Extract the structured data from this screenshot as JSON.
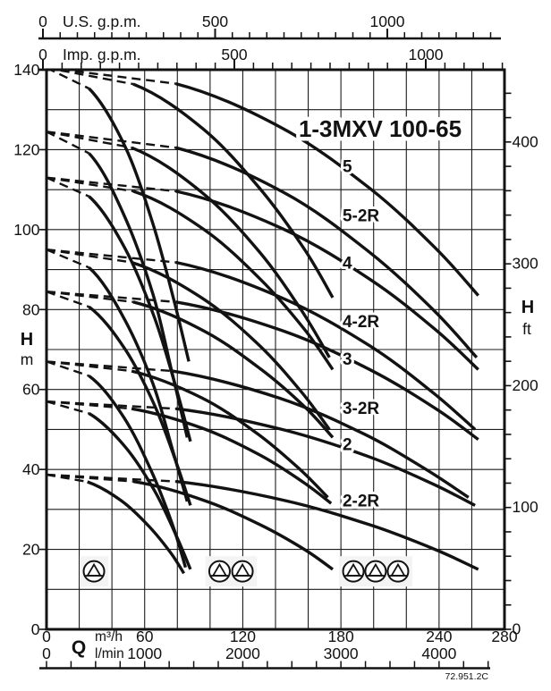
{
  "chart_data": {
    "type": "line",
    "title": "1-3MXV 100-65",
    "drawing_ref": "72.951.2C",
    "axes": {
      "flow": {
        "symbol": "Q",
        "unit_primary": "m³/h",
        "unit_secondary": "l/min",
        "ticks_m3h": [
          0,
          60,
          120,
          180,
          240,
          280
        ],
        "ticks_lmin": [
          0,
          1000,
          2000,
          3000,
          4000
        ],
        "range_m3h": [
          0,
          280
        ],
        "grid_step_m3h": 20,
        "lmin_minor_step": 250,
        "lmin_minor_max": 4500
      },
      "head_left": {
        "symbol": "H",
        "unit": "m",
        "ticks": [
          140,
          120,
          100,
          80,
          60,
          40,
          20,
          0
        ],
        "range": [
          0,
          140
        ],
        "grid_step": 10
      },
      "head_right": {
        "symbol": "H",
        "unit": "ft",
        "labels": [
          400,
          300,
          200,
          100,
          0
        ],
        "minor_step": 20,
        "minor_max": 440
      },
      "top_us": {
        "zero": "0",
        "label": "U.S. g.p.m.",
        "major_ticks": [
          0,
          500,
          1000
        ],
        "minor_step": 50,
        "minor_max": 1300
      },
      "top_imp": {
        "zero": "0",
        "label": "Imp. g.p.m.",
        "major_ticks": [
          0,
          500,
          1000
        ],
        "minor_step": 50,
        "minor_max": 1200
      }
    },
    "dashed_until_index": 1,
    "series": [
      {
        "label": "5",
        "shutoff_head_m": 140.5,
        "label_at": {
          "q": 181,
          "h": 115.9
        },
        "curves": [
          {
            "family": "1MXV",
            "points": [
              [
                0,
                140.5
              ],
              [
                26,
                135.3
              ],
              [
                48,
                120.8
              ],
              [
                65,
                101.5
              ],
              [
                78,
                82.2
              ],
              [
                87,
                67
              ]
            ]
          },
          {
            "family": "2MXV",
            "points": [
              [
                0,
                140.5
              ],
              [
                53,
                136.4
              ],
              [
                96,
                125.1
              ],
              [
                131,
                110.0
              ],
              [
                158,
                94.9
              ],
              [
                175,
                83
              ]
            ]
          },
          {
            "family": "3MXV",
            "points": [
              [
                0,
                140.5
              ],
              [
                79,
                136.5
              ],
              [
                145,
                125.2
              ],
              [
                198,
                110.2
              ],
              [
                238,
                95.3
              ],
              [
                264,
                83.5
              ]
            ]
          }
        ]
      },
      {
        "label": "5-2R",
        "shutoff_head_m": 124.5,
        "label_at": {
          "q": 181,
          "h": 103.6
        },
        "curves": [
          {
            "family": "1MXV",
            "points": [
              [
                0,
                124.5
              ],
              [
                26,
                119.1
              ],
              [
                47,
                104.0
              ],
              [
                65,
                83.9
              ],
              [
                77,
                63.8
              ],
              [
                86,
                48
              ]
            ]
          },
          {
            "family": "2MXV",
            "points": [
              [
                0,
                124.5
              ],
              [
                52,
                120.5
              ],
              [
                95,
                109.3
              ],
              [
                130,
                94.5
              ],
              [
                156,
                79.7
              ],
              [
                173,
                68
              ]
            ]
          },
          {
            "family": "3MXV",
            "points": [
              [
                0,
                124.5
              ],
              [
                79,
                120.5
              ],
              [
                145,
                109.3
              ],
              [
                197,
                94.5
              ],
              [
                237,
                79.7
              ],
              [
                263,
                68
              ]
            ]
          }
        ]
      },
      {
        "label": "4",
        "shutoff_head_m": 113,
        "label_at": {
          "q": 181,
          "h": 91.7
        },
        "curves": [
          {
            "family": "1MXV",
            "points": [
              [
                0,
                113
              ],
              [
                26,
                108.3
              ],
              [
                48,
                95.3
              ],
              [
                66,
                78.0
              ],
              [
                79,
                60.7
              ],
              [
                88,
                47
              ]
            ]
          },
          {
            "family": "2MXV",
            "points": [
              [
                0,
                113
              ],
              [
                53,
                109.6
              ],
              [
                96,
                100.1
              ],
              [
                131,
                87.5
              ],
              [
                158,
                74.9
              ],
              [
                175,
                65
              ]
            ]
          },
          {
            "family": "3MXV",
            "points": [
              [
                0,
                113
              ],
              [
                79,
                109.6
              ],
              [
                145,
                100.1
              ],
              [
                198,
                87.5
              ],
              [
                238,
                74.9
              ],
              [
                264,
                65
              ]
            ]
          }
        ]
      },
      {
        "label": "4-2R",
        "shutoff_head_m": 95,
        "label_at": {
          "q": 181,
          "h": 77
        },
        "curves": [
          {
            "family": "1MXV",
            "points": [
              [
                0,
                95
              ],
              [
                26,
                90.5
              ],
              [
                47,
                78.1
              ],
              [
                65,
                61.5
              ],
              [
                77,
                45.0
              ],
              [
                86,
                32
              ]
            ]
          },
          {
            "family": "2MXV",
            "points": [
              [
                0,
                95
              ],
              [
                52,
                91.8
              ],
              [
                95,
                82.9
              ],
              [
                130,
                71.1
              ],
              [
                156,
                59.3
              ],
              [
                173,
                50
              ]
            ]
          },
          {
            "family": "3MXV",
            "points": [
              [
                0,
                95
              ],
              [
                79,
                91.8
              ],
              [
                144,
                82.9
              ],
              [
                197,
                71.1
              ],
              [
                236,
                59.3
              ],
              [
                262,
                50
              ]
            ]
          }
        ]
      },
      {
        "label": "3",
        "shutoff_head_m": 84.5,
        "label_at": {
          "q": 181,
          "h": 67.6
        },
        "curves": [
          {
            "family": "1MXV",
            "points": [
              [
                0,
                84.5
              ],
              [
                26,
                80.7
              ],
              [
                48,
                70.1
              ],
              [
                66,
                56.1
              ],
              [
                79,
                42.1
              ],
              [
                88,
                31
              ]
            ]
          },
          {
            "family": "2MXV",
            "points": [
              [
                0,
                84.5
              ],
              [
                53,
                81.9
              ],
              [
                96,
                74.7
              ],
              [
                131,
                65.1
              ],
              [
                158,
                55.6
              ],
              [
                175,
                48
              ]
            ]
          },
          {
            "family": "3MXV",
            "points": [
              [
                0,
                84.5
              ],
              [
                79,
                81.9
              ],
              [
                145,
                74.6
              ],
              [
                198,
                64.9
              ],
              [
                238,
                55.2
              ],
              [
                264,
                47.5
              ]
            ]
          }
        ]
      },
      {
        "label": "3-2R",
        "shutoff_head_m": 67,
        "label_at": {
          "q": 181,
          "h": 55.3
        },
        "curves": [
          {
            "family": "1MXV",
            "points": [
              [
                0,
                67
              ],
              [
                26,
                63.4
              ],
              [
                47,
                53.2
              ],
              [
                64,
                39.7
              ],
              [
                77,
                26.2
              ],
              [
                85,
                15.5
              ]
            ]
          },
          {
            "family": "2MXV",
            "points": [
              [
                0,
                67
              ],
              [
                52,
                64.6
              ],
              [
                95,
                57.9
              ],
              [
                129,
                48.9
              ],
              [
                155,
                40.0
              ],
              [
                172,
                33
              ]
            ]
          },
          {
            "family": "3MXV",
            "points": [
              [
                0,
                67
              ],
              [
                77,
                64.6
              ],
              [
                142,
                57.9
              ],
              [
                194,
                48.9
              ],
              [
                232,
                40.0
              ],
              [
                258,
                33
              ]
            ]
          }
        ]
      },
      {
        "label": "2",
        "shutoff_head_m": 57,
        "label_at": {
          "q": 181,
          "h": 46.3
        },
        "curves": [
          {
            "family": "1MXV",
            "points": [
              [
                0,
                57
              ],
              [
                26,
                54.0
              ],
              [
                48,
                45.7
              ],
              [
                66,
                34.7
              ],
              [
                79,
                23.7
              ],
              [
                88,
                15
              ]
            ]
          },
          {
            "family": "2MXV",
            "points": [
              [
                0,
                57
              ],
              [
                52,
                55.2
              ],
              [
                96,
                50.2
              ],
              [
                131,
                43.5
              ],
              [
                157,
                36.8
              ],
              [
                174,
                31.5
              ]
            ]
          },
          {
            "family": "3MXV",
            "points": [
              [
                0,
                57
              ],
              [
                79,
                55.2
              ],
              [
                144,
                50.0
              ],
              [
                197,
                43.2
              ],
              [
                236,
                36.4
              ],
              [
                262,
                31
              ]
            ]
          }
        ]
      },
      {
        "label": "2-2R",
        "shutoff_head_m": 38.7,
        "label_at": {
          "q": 181,
          "h": 32.2
        },
        "curves": [
          {
            "family": "1MXV",
            "points": [
              [
                0,
                38.7
              ],
              [
                25,
                36.9
              ],
              [
                46,
                32.1
              ],
              [
                63,
                25.6
              ],
              [
                76,
                19.1
              ],
              [
                84,
                14
              ]
            ]
          },
          {
            "family": "2MXV",
            "points": [
              [
                0,
                38.7
              ],
              [
                53,
                37.0
              ],
              [
                96,
                32.3
              ],
              [
                131,
                26.1
              ],
              [
                158,
                19.9
              ],
              [
                175,
                15
              ]
            ]
          },
          {
            "family": "3MXV",
            "points": [
              [
                0,
                38.7
              ],
              [
                79,
                37.0
              ],
              [
                145,
                32.3
              ],
              [
                198,
                26.1
              ],
              [
                238,
                19.9
              ],
              [
                264,
                15
              ]
            ]
          }
        ]
      }
    ],
    "pump_symbols": [
      {
        "pumps": 1,
        "centers_q": [
          29.0
        ],
        "h": 14.5
      },
      {
        "pumps": 2,
        "centers_q": [
          105.8,
          119.8
        ],
        "h": 14.5
      },
      {
        "pumps": 3,
        "centers_q": [
          187.6,
          201.2,
          214.9
        ],
        "h": 14.5
      }
    ]
  }
}
